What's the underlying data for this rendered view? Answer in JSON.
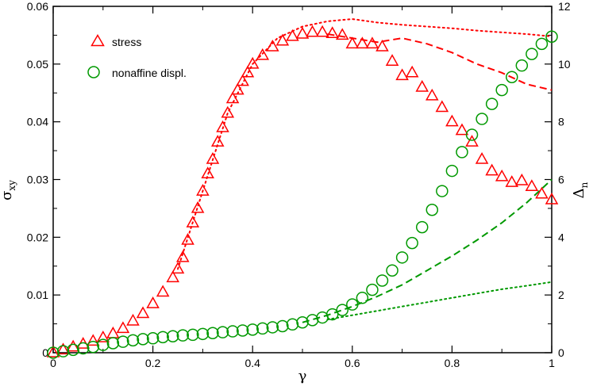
{
  "chart_data": {
    "type": "scatter",
    "title": "",
    "xlabel": "γ",
    "ylabel_left": "σ",
    "ylabel_left_sub": "xy",
    "ylabel_right": "Δ",
    "ylabel_right_sub": "n",
    "xlim": [
      0,
      1
    ],
    "ylim_left": [
      0,
      0.06
    ],
    "ylim_right": [
      0,
      12
    ],
    "x_ticks": [
      0,
      0.2,
      0.4,
      0.6,
      0.8,
      1
    ],
    "x_tick_labels": [
      "0",
      "0.2",
      "0.4",
      "0.6",
      "0.8",
      "1"
    ],
    "y_left_ticks": [
      0,
      0.01,
      0.02,
      0.03,
      0.04,
      0.05,
      0.06
    ],
    "y_left_tick_labels": [
      "0",
      "0.01",
      "0.02",
      "0.03",
      "0.04",
      "0.05",
      "0.06"
    ],
    "y_right_ticks": [
      0,
      2,
      4,
      6,
      8,
      10,
      12
    ],
    "y_right_tick_labels": [
      "0",
      "2",
      "4",
      "6",
      "8",
      "10",
      "12"
    ],
    "grid": false,
    "legend": {
      "position": "top-left",
      "entries": [
        {
          "label": "stress",
          "marker": "triangle",
          "color": "#ff0000"
        },
        {
          "label": "nonaffine displ.",
          "marker": "circle",
          "color": "#009900"
        }
      ]
    },
    "colors": {
      "stress": "#ff0000",
      "nonaffine": "#009900",
      "axis": "#000000"
    },
    "series": [
      {
        "name": "stress",
        "axis": "left",
        "style": "triangle-markers",
        "x": [
          0,
          0.02,
          0.04,
          0.06,
          0.08,
          0.1,
          0.12,
          0.14,
          0.16,
          0.18,
          0.2,
          0.22,
          0.24,
          0.25,
          0.26,
          0.27,
          0.28,
          0.29,
          0.3,
          0.31,
          0.32,
          0.33,
          0.34,
          0.35,
          0.36,
          0.37,
          0.38,
          0.39,
          0.4,
          0.42,
          0.44,
          0.46,
          0.48,
          0.5,
          0.52,
          0.54,
          0.56,
          0.58,
          0.6,
          0.62,
          0.64,
          0.66,
          0.68,
          0.7,
          0.72,
          0.74,
          0.76,
          0.78,
          0.8,
          0.82,
          0.84,
          0.86,
          0.88,
          0.9,
          0.92,
          0.94,
          0.96,
          0.98,
          1.0
        ],
        "y": [
          0,
          0.0005,
          0.001,
          0.0015,
          0.002,
          0.0026,
          0.0033,
          0.0042,
          0.0055,
          0.0068,
          0.0085,
          0.0105,
          0.013,
          0.0145,
          0.0165,
          0.0195,
          0.0225,
          0.025,
          0.028,
          0.031,
          0.0335,
          0.0365,
          0.039,
          0.0415,
          0.044,
          0.0455,
          0.047,
          0.0485,
          0.05,
          0.0515,
          0.053,
          0.054,
          0.0548,
          0.0552,
          0.0555,
          0.0555,
          0.0553,
          0.055,
          0.0535,
          0.0535,
          0.0535,
          0.053,
          0.0505,
          0.048,
          0.0485,
          0.046,
          0.0445,
          0.0425,
          0.04,
          0.0385,
          0.0365,
          0.0335,
          0.0315,
          0.0305,
          0.0295,
          0.0298,
          0.0288,
          0.0275,
          0.0265
        ]
      },
      {
        "name": "stress (dashed)",
        "axis": "left",
        "style": "dashed",
        "x": [
          0.55,
          0.6,
          0.65,
          0.7,
          0.75,
          0.8,
          0.85,
          0.9,
          0.95,
          1.0
        ],
        "y": [
          0.0552,
          0.0545,
          0.0538,
          0.0545,
          0.0535,
          0.052,
          0.05,
          0.0485,
          0.0465,
          0.0455
        ]
      },
      {
        "name": "stress (dotted)",
        "axis": "left",
        "style": "dotted",
        "x": [
          0.25,
          0.3,
          0.35,
          0.4,
          0.45,
          0.5,
          0.55,
          0.6,
          0.65,
          0.7,
          0.75,
          0.8,
          0.85,
          0.9,
          0.95,
          1.0
        ],
        "y": [
          0.0145,
          0.028,
          0.0415,
          0.05,
          0.0545,
          0.0565,
          0.0574,
          0.0578,
          0.0572,
          0.0568,
          0.0565,
          0.0562,
          0.0558,
          0.0555,
          0.0552,
          0.0548
        ]
      },
      {
        "name": "nonaffine displ.",
        "axis": "right",
        "style": "circle-markers",
        "x": [
          0,
          0.02,
          0.04,
          0.06,
          0.08,
          0.1,
          0.12,
          0.14,
          0.16,
          0.18,
          0.2,
          0.22,
          0.24,
          0.26,
          0.28,
          0.3,
          0.32,
          0.34,
          0.36,
          0.38,
          0.4,
          0.42,
          0.44,
          0.46,
          0.48,
          0.5,
          0.52,
          0.54,
          0.56,
          0.58,
          0.6,
          0.62,
          0.64,
          0.66,
          0.68,
          0.7,
          0.72,
          0.74,
          0.76,
          0.78,
          0.8,
          0.82,
          0.84,
          0.86,
          0.88,
          0.9,
          0.92,
          0.94,
          0.96,
          0.98,
          1.0
        ],
        "y": [
          0,
          0.05,
          0.1,
          0.15,
          0.2,
          0.27,
          0.33,
          0.38,
          0.43,
          0.47,
          0.5,
          0.54,
          0.57,
          0.6,
          0.62,
          0.65,
          0.68,
          0.71,
          0.74,
          0.77,
          0.8,
          0.84,
          0.88,
          0.92,
          0.98,
          1.05,
          1.13,
          1.22,
          1.33,
          1.48,
          1.67,
          1.9,
          2.18,
          2.5,
          2.85,
          3.3,
          3.8,
          4.35,
          4.95,
          5.6,
          6.3,
          6.95,
          7.55,
          8.1,
          8.62,
          9.1,
          9.55,
          9.95,
          10.35,
          10.7,
          10.95
        ]
      },
      {
        "name": "nonaffine (dashed)",
        "axis": "right",
        "style": "dashed",
        "x": [
          0.5,
          0.55,
          0.6,
          0.65,
          0.7,
          0.75,
          0.8,
          0.85,
          0.9,
          0.95,
          1.0
        ],
        "y": [
          1.05,
          1.3,
          1.6,
          1.95,
          2.35,
          2.85,
          3.35,
          3.9,
          4.5,
          5.2,
          6.0
        ]
      },
      {
        "name": "nonaffine (dotted)",
        "axis": "right",
        "style": "dotted",
        "x": [
          0.55,
          0.6,
          0.65,
          0.7,
          0.75,
          0.8,
          0.85,
          0.9,
          0.95,
          1.0
        ],
        "y": [
          1.15,
          1.3,
          1.45,
          1.6,
          1.75,
          1.9,
          2.05,
          2.2,
          2.32,
          2.45
        ]
      }
    ]
  }
}
